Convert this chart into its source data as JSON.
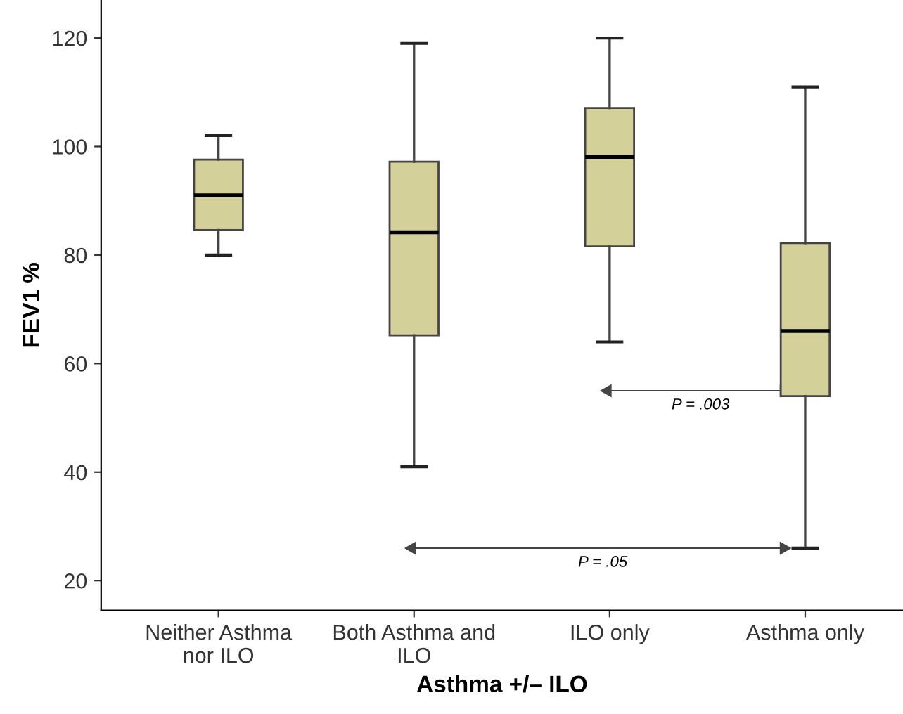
{
  "chart_data": {
    "type": "box",
    "xlabel": "Asthma +/– ILO",
    "ylabel": "FEV1 %",
    "categories": [
      "Neither Asthma\nnor ILO",
      "Both Asthma and\nILO",
      "ILO only",
      "Asthma only"
    ],
    "color": "#d4d09a",
    "boxes": [
      {
        "low": 80,
        "q1": 84.6,
        "median": 91,
        "q3": 97.6,
        "high": 102
      },
      {
        "low": 41,
        "q1": 65.2,
        "median": 84.2,
        "q3": 97.2,
        "high": 119
      },
      {
        "low": 64,
        "q1": 81.6,
        "median": 98.1,
        "q3": 107.1,
        "high": 120
      },
      {
        "low": 26,
        "q1": 54,
        "median": 66,
        "q3": 82.2,
        "high": 111
      }
    ],
    "ylim": [
      14.5,
      127
    ],
    "yticks": [
      20,
      40,
      60,
      80,
      100,
      120
    ],
    "grid": false,
    "annotations": [
      "P = .003",
      "P = .05"
    ]
  }
}
